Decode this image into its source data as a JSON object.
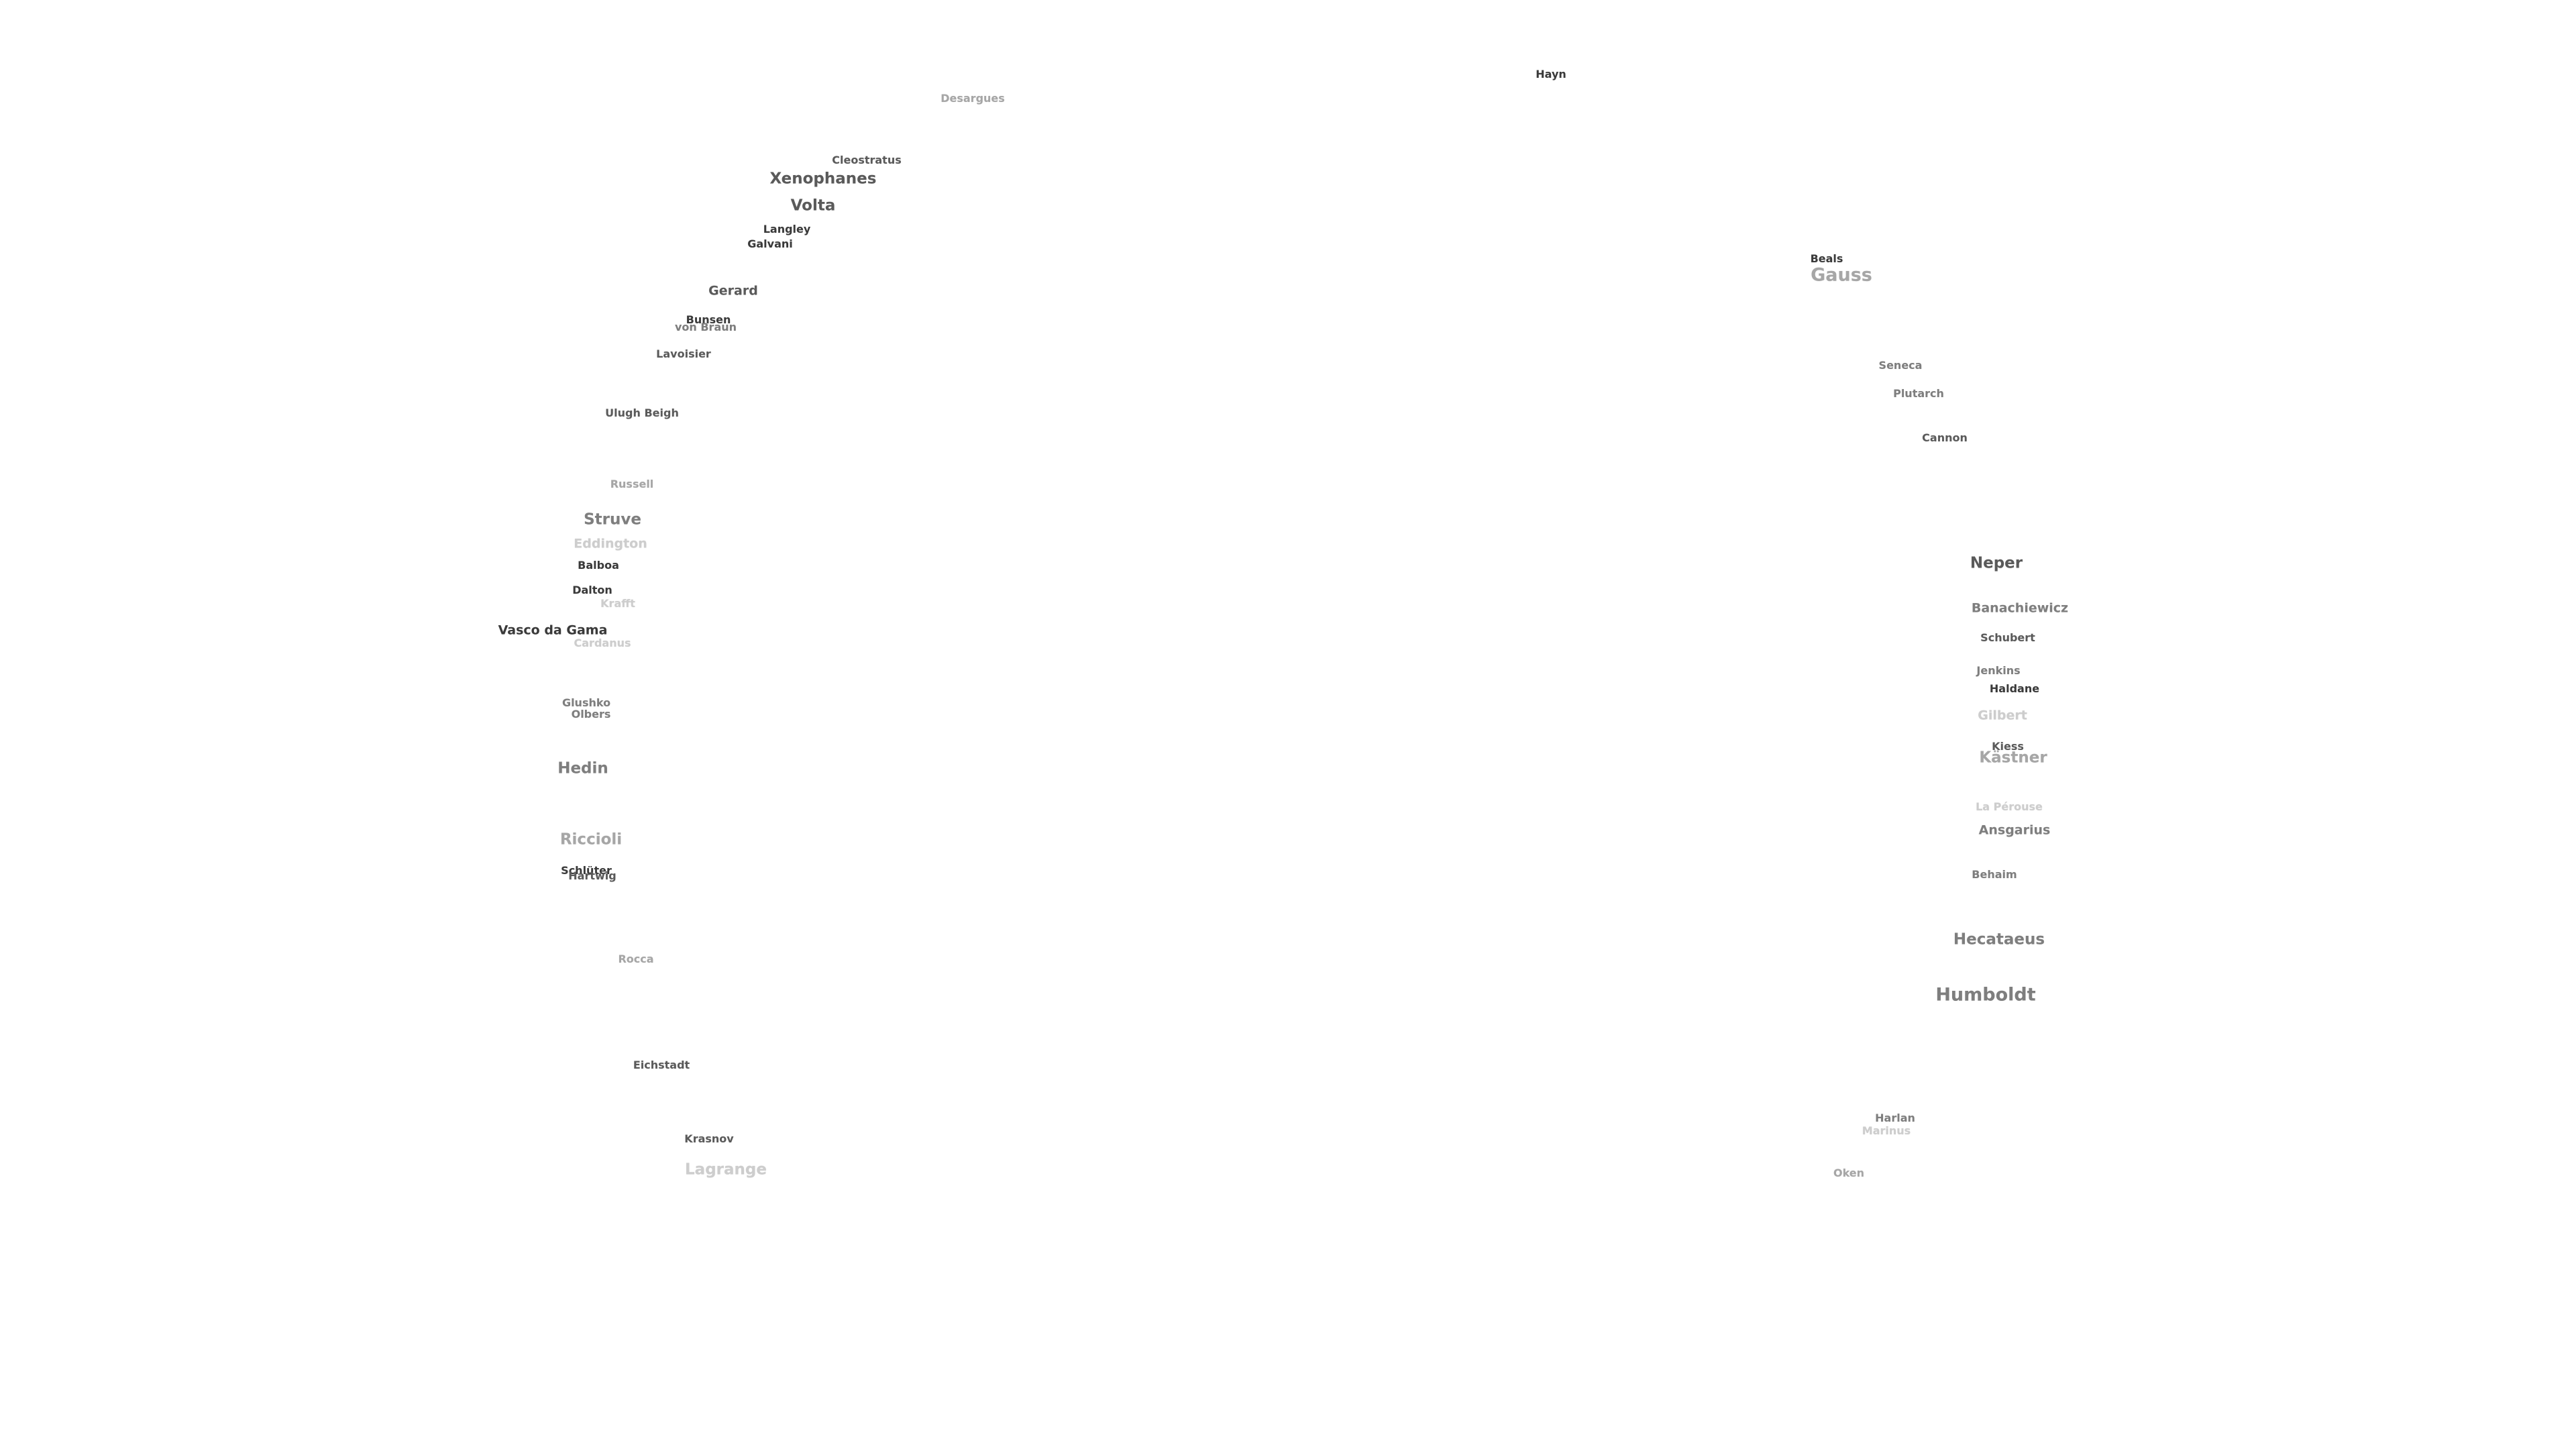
{
  "labels": [
    {
      "text": "Desargues"
    },
    {
      "text": "Hayn"
    },
    {
      "text": "Cleostratus"
    },
    {
      "text": "Xenophanes"
    },
    {
      "text": "Volta"
    },
    {
      "text": "Langley"
    },
    {
      "text": "Galvani"
    },
    {
      "text": "Gerard"
    },
    {
      "text": "Bunsen"
    },
    {
      "text": "von Braun"
    },
    {
      "text": "Lavoisier"
    },
    {
      "text": "Ulugh Beigh"
    },
    {
      "text": "Russell"
    },
    {
      "text": "Struve"
    },
    {
      "text": "Eddington"
    },
    {
      "text": "Balboa"
    },
    {
      "text": "Dalton"
    },
    {
      "text": "Krafft"
    },
    {
      "text": "Vasco da Gama"
    },
    {
      "text": "Cardanus"
    },
    {
      "text": "Glushko"
    },
    {
      "text": "Olbers"
    },
    {
      "text": "Hedin"
    },
    {
      "text": "Riccioli"
    },
    {
      "text": "Schlüter"
    },
    {
      "text": "Hartwig"
    },
    {
      "text": "Rocca"
    },
    {
      "text": "Eichstadt"
    },
    {
      "text": "Krasnov"
    },
    {
      "text": "Lagrange"
    },
    {
      "text": "Beals"
    },
    {
      "text": "Gauss"
    },
    {
      "text": "Seneca"
    },
    {
      "text": "Plutarch"
    },
    {
      "text": "Cannon"
    },
    {
      "text": "Neper"
    },
    {
      "text": "Banachiewicz"
    },
    {
      "text": "Schubert"
    },
    {
      "text": "Jenkins"
    },
    {
      "text": "Haldane"
    },
    {
      "text": "Gilbert"
    },
    {
      "text": "Kiess"
    },
    {
      "text": "Kästner"
    },
    {
      "text": "La Pérouse"
    },
    {
      "text": "Ansgarius"
    },
    {
      "text": "Behaim"
    },
    {
      "text": "Hecataeus"
    },
    {
      "text": "Humboldt"
    },
    {
      "text": "Harlan"
    },
    {
      "text": "Marinus"
    },
    {
      "text": "Oken"
    }
  ]
}
